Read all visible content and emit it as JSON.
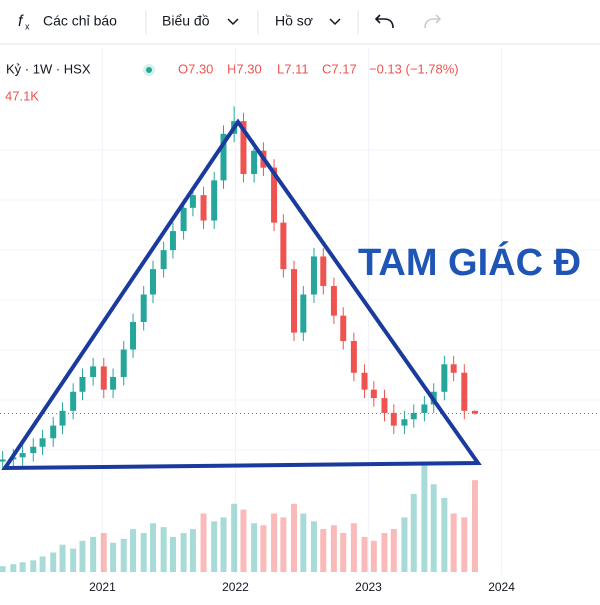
{
  "toolbar": {
    "indicators": "Các chỉ báo",
    "chart_type": "Biểu đồ",
    "profile": "Hồ sơ"
  },
  "legend": {
    "symbol": "Kỷ · 1W · HSX",
    "open": "O7.30",
    "high": "H7.30",
    "low": "L7.11",
    "close": "C7.17",
    "change": "−0.13 (−1.78%)",
    "volume": "47.1K"
  },
  "chart_data": {
    "type": "candlestick",
    "annotation": "TAM GIÁC Đ",
    "x": [
      2020.25,
      2020.33,
      2020.4,
      2020.48,
      2020.55,
      2020.63,
      2020.7,
      2020.78,
      2020.85,
      2020.93,
      2021.01,
      2021.08,
      2021.16,
      2021.23,
      2021.31,
      2021.38,
      2021.46,
      2021.53,
      2021.61,
      2021.68,
      2021.76,
      2021.84,
      2021.91,
      2021.99,
      2022.06,
      2022.14,
      2022.21,
      2022.29,
      2022.36,
      2022.44,
      2022.51,
      2022.59,
      2022.66,
      2022.74,
      2022.81,
      2022.89,
      2022.97,
      2023.04,
      2023.12,
      2023.19,
      2023.27,
      2023.34,
      2023.42,
      2023.49,
      2023.57,
      2023.64,
      2023.72,
      2023.8
    ],
    "open": [
      4.9,
      5.0,
      5.1,
      5.3,
      5.6,
      6.0,
      6.6,
      7.3,
      8.2,
      8.9,
      9.4,
      8.3,
      8.9,
      10.2,
      11.5,
      12.8,
      14.0,
      14.9,
      15.8,
      16.9,
      17.5,
      16.3,
      18.2,
      20.4,
      21.0,
      18.5,
      19.6,
      18.8,
      16.2,
      14.0,
      11.0,
      12.8,
      14.6,
      13.2,
      11.8,
      10.6,
      9.1,
      8.3,
      7.9,
      7.2,
      6.6,
      6.9,
      7.2,
      7.6,
      8.2,
      9.5,
      9.1,
      7.3
    ],
    "high": [
      5.4,
      5.5,
      5.7,
      6.0,
      6.4,
      7.0,
      7.7,
      8.6,
      9.3,
      9.8,
      9.8,
      9.3,
      10.6,
      11.9,
      13.2,
      14.4,
      15.3,
      16.2,
      17.3,
      17.9,
      17.9,
      18.6,
      20.8,
      21.7,
      21.4,
      20.0,
      20.0,
      19.2,
      16.6,
      14.4,
      13.2,
      15.0,
      15.0,
      13.6,
      12.2,
      11.0,
      9.5,
      8.7,
      8.3,
      7.6,
      7.3,
      7.6,
      8.0,
      8.6,
      9.9,
      9.9,
      9.5,
      7.3
    ],
    "low": [
      4.5,
      4.6,
      4.7,
      4.9,
      5.2,
      5.6,
      6.2,
      6.9,
      7.8,
      8.5,
      7.9,
      7.9,
      8.5,
      9.8,
      11.1,
      12.4,
      13.6,
      14.5,
      15.4,
      16.5,
      15.9,
      15.9,
      17.8,
      20.0,
      18.1,
      18.1,
      18.4,
      15.8,
      13.6,
      10.6,
      10.6,
      12.4,
      12.8,
      11.4,
      10.2,
      8.7,
      7.9,
      7.5,
      6.8,
      6.2,
      6.2,
      6.5,
      6.8,
      7.2,
      7.8,
      8.7,
      6.9,
      7.11
    ],
    "close": [
      5.0,
      5.1,
      5.3,
      5.6,
      6.0,
      6.6,
      7.3,
      8.2,
      8.9,
      9.4,
      8.3,
      8.9,
      10.2,
      11.5,
      12.8,
      14.0,
      14.9,
      15.8,
      16.9,
      17.5,
      16.3,
      18.2,
      20.4,
      21.0,
      18.5,
      19.6,
      18.8,
      16.2,
      14.0,
      11.0,
      12.8,
      14.6,
      13.2,
      11.8,
      10.6,
      9.1,
      8.3,
      7.9,
      7.2,
      6.6,
      6.9,
      7.2,
      7.6,
      8.2,
      9.5,
      9.1,
      7.3,
      7.17
    ],
    "volume": [
      3,
      4,
      5,
      6,
      8,
      10,
      14,
      12,
      16,
      18,
      20,
      15,
      17,
      22,
      20,
      25,
      23,
      18,
      20,
      22,
      30,
      26,
      28,
      35,
      32,
      25,
      24,
      30,
      28,
      35,
      30,
      26,
      22,
      24,
      20,
      25,
      18,
      16,
      20,
      22,
      28,
      40,
      55,
      45,
      38,
      30,
      28,
      47.1
    ],
    "up_color": "#26a69a",
    "down_color": "#ef5350",
    "xlim": [
      2020.23,
      2024.74
    ],
    "xticks": [
      2021,
      2022,
      2023,
      2024
    ],
    "ylim": [
      4.5,
      22
    ],
    "volume_lim": [
      0,
      60
    ],
    "grid": true
  }
}
